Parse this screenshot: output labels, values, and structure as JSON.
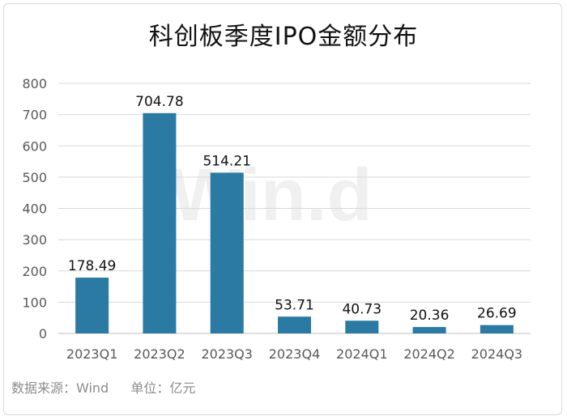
{
  "title": "科创板季度IPO金额分布",
  "footer": {
    "source": "数据来源：Wind",
    "unit": "单位：亿元"
  },
  "watermark": "Win.d",
  "colors": {
    "bar": "#2a7aa3",
    "grid": "#d9d9d9",
    "text": "#595959",
    "label": "#111111"
  },
  "chart_data": {
    "type": "bar",
    "title": "科创板季度IPO金额分布",
    "categories": [
      "2023Q1",
      "2023Q2",
      "2023Q3",
      "2023Q4",
      "2024Q1",
      "2024Q2",
      "2024Q3"
    ],
    "values": [
      178.49,
      704.78,
      514.21,
      53.71,
      40.73,
      20.36,
      26.69
    ],
    "value_labels": [
      "178.49",
      "704.78",
      "514.21",
      "53.71",
      "40.73",
      "20.36",
      "26.69"
    ],
    "ylim": [
      0,
      800
    ],
    "yticks": [
      "0",
      "100",
      "200",
      "300",
      "400",
      "500",
      "600",
      "700",
      "800"
    ],
    "grid": true,
    "legend": "none"
  }
}
